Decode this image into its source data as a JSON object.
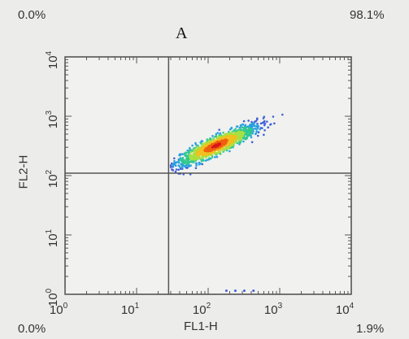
{
  "chart_data": {
    "type": "scatter",
    "panel_label": "A",
    "xlabel": "FL1-H",
    "ylabel": "FL2-H",
    "x_scale": "log",
    "y_scale": "log",
    "xlim": [
      1,
      10000
    ],
    "ylim": [
      1,
      10000
    ],
    "x_ticks": [
      {
        "value": 1,
        "base": "10",
        "exp": "0"
      },
      {
        "value": 10,
        "base": "10",
        "exp": "1"
      },
      {
        "value": 100,
        "base": "10",
        "exp": "2"
      },
      {
        "value": 1000,
        "base": "10",
        "exp": "3"
      },
      {
        "value": 10000,
        "base": "10",
        "exp": "4"
      }
    ],
    "y_ticks": [
      {
        "value": 1,
        "base": "10",
        "exp": "0"
      },
      {
        "value": 10,
        "base": "10",
        "exp": "1"
      },
      {
        "value": 100,
        "base": "10",
        "exp": "2"
      },
      {
        "value": 1000,
        "base": "10",
        "exp": "3"
      },
      {
        "value": 10000,
        "base": "10",
        "exp": "4"
      }
    ],
    "gates": {
      "x": 28,
      "y": 110
    },
    "quadrants": {
      "upper_left": "0.0%",
      "upper_right": "98.1%",
      "lower_left": "0.0%",
      "lower_right": "1.9%"
    },
    "population": {
      "center": [
        130,
        320
      ],
      "x_range": [
        30,
        1400
      ],
      "y_range": [
        100,
        1400
      ],
      "density_colors": [
        "#4060d8",
        "#28a0e0",
        "#30c890",
        "#a8e040",
        "#f0c020",
        "#f06010",
        "#d81818"
      ]
    },
    "outliers": [
      [
        180,
        1.15
      ],
      [
        240,
        1.15
      ],
      [
        320,
        1.15
      ],
      [
        430,
        1.15
      ]
    ]
  }
}
